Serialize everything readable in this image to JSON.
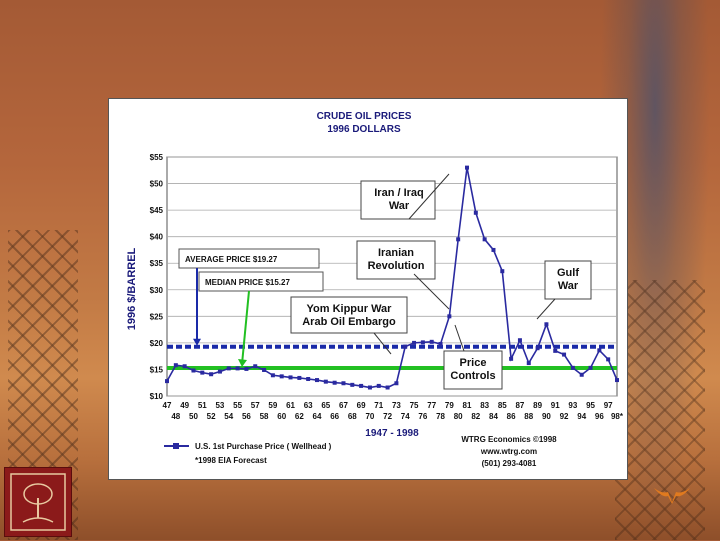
{
  "chart_data": {
    "type": "line",
    "title": "CRUDE OIL PRICES",
    "subtitle": "1996 DOLLARS",
    "ylabel": "1996 $/BARREL",
    "xlabel": "1947 - 1998",
    "ylim": [
      10,
      55
    ],
    "yticks": [
      "$10",
      "$15",
      "$20",
      "$25",
      "$30",
      "$35",
      "$40",
      "$45",
      "$50",
      "$55"
    ],
    "xticks_top": [
      "47",
      "49",
      "51",
      "53",
      "55",
      "57",
      "59",
      "61",
      "63",
      "65",
      "67",
      "69",
      "71",
      "73",
      "75",
      "77",
      "79",
      "81",
      "83",
      "85",
      "87",
      "89",
      "91",
      "93",
      "95",
      "97"
    ],
    "xticks_bottom": [
      "48",
      "50",
      "52",
      "54",
      "56",
      "58",
      "60",
      "62",
      "64",
      "66",
      "68",
      "70",
      "72",
      "74",
      "76",
      "78",
      "80",
      "82",
      "84",
      "86",
      "88",
      "90",
      "92",
      "94",
      "96",
      "98*"
    ],
    "grid": true,
    "series": [
      {
        "name": "U.S. 1st Purchase Price ( Wellhead )",
        "color": "#2a2aa0",
        "x": [
          1947,
          1948,
          1949,
          1950,
          1951,
          1952,
          1953,
          1954,
          1955,
          1956,
          1957,
          1958,
          1959,
          1960,
          1961,
          1962,
          1963,
          1964,
          1965,
          1966,
          1967,
          1968,
          1969,
          1970,
          1971,
          1972,
          1973,
          1974,
          1975,
          1976,
          1977,
          1978,
          1979,
          1980,
          1981,
          1982,
          1983,
          1984,
          1985,
          1986,
          1987,
          1988,
          1989,
          1990,
          1991,
          1992,
          1993,
          1994,
          1995,
          1996,
          1997,
          1998
        ],
        "y": [
          12.8,
          15.8,
          15.6,
          14.8,
          14.4,
          14.1,
          14.6,
          15.2,
          15.2,
          15.1,
          15.6,
          14.9,
          13.9,
          13.7,
          13.5,
          13.4,
          13.2,
          13.0,
          12.7,
          12.5,
          12.4,
          12.1,
          11.9,
          11.6,
          11.9,
          11.6,
          12.4,
          19.3,
          20.0,
          20.1,
          20.2,
          19.8,
          25.0,
          39.5,
          53.0,
          44.5,
          39.5,
          37.5,
          33.5,
          17.0,
          20.5,
          16.2,
          19.0,
          23.5,
          18.5,
          17.8,
          15.3,
          14.0,
          15.3,
          18.6,
          16.9,
          13.0
        ]
      }
    ],
    "reference_lines": [
      {
        "label": "AVERAGE  PRICE  $19.27",
        "value": 19.27,
        "color": "#1a2aa8"
      },
      {
        "label": "MEDIAN  PRICE  $15.27",
        "value": 15.27,
        "color": "#22c022"
      }
    ],
    "annotations": [
      {
        "text": [
          "Iran / Iraq",
          "War"
        ],
        "x": 1981,
        "y": 52
      },
      {
        "text": [
          "Iranian",
          "Revolution"
        ],
        "x": 1979,
        "y": 26
      },
      {
        "text": [
          "Gulf",
          "War"
        ],
        "x": 1990,
        "y": 23
      },
      {
        "text": [
          "Yom Kippur War",
          "Arab Oil Embargo"
        ],
        "x": 1974,
        "y": 20
      },
      {
        "text": [
          "Price",
          "Controls"
        ],
        "x": 1977,
        "y": 20
      }
    ],
    "legend": {
      "placement": "bottom-left",
      "label": "U.S. 1st Purchase Price ( Wellhead )",
      "footnote": "*1998 EIA Forecast"
    },
    "credits": [
      "WTRG Economics  ©1998",
      "www.wtrg.com",
      "(501) 293-4081"
    ]
  }
}
